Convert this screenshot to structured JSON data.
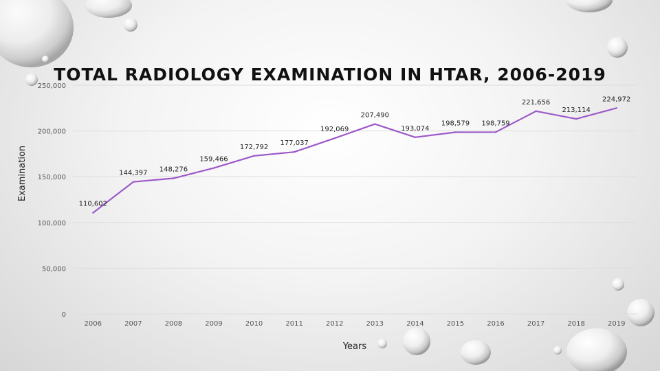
{
  "slide": {
    "title": "TOTAL RADIOLOGY EXAMINATION IN HTAR, 2006-2019"
  },
  "chart_data": {
    "type": "line",
    "title": "",
    "xlabel": "Years",
    "ylabel": "Examination",
    "categories": [
      "2006",
      "2007",
      "2008",
      "2009",
      "2010",
      "2011",
      "2012",
      "2013",
      "2014",
      "2015",
      "2016",
      "2017",
      "2018",
      "2019"
    ],
    "series": [
      {
        "values": [
          110602,
          144397,
          148276,
          159466,
          172792,
          177037,
          192069,
          207490,
          193074,
          198579,
          198759,
          221656,
          213114,
          224972
        ],
        "labels": [
          "110,602",
          "144,397",
          "148,276",
          "159,466",
          "172,792",
          "177,037",
          "192,069",
          "207,490",
          "193,074",
          "198,579",
          "198,759",
          "221,656",
          "213,114",
          "224,972"
        ],
        "color": "#9b59c9"
      }
    ],
    "ylim": [
      0,
      250000
    ],
    "yticks": [
      "0",
      "50,000",
      "100,000",
      "150,000",
      "200,000",
      "250,000"
    ],
    "grid": true,
    "legend": "none"
  }
}
